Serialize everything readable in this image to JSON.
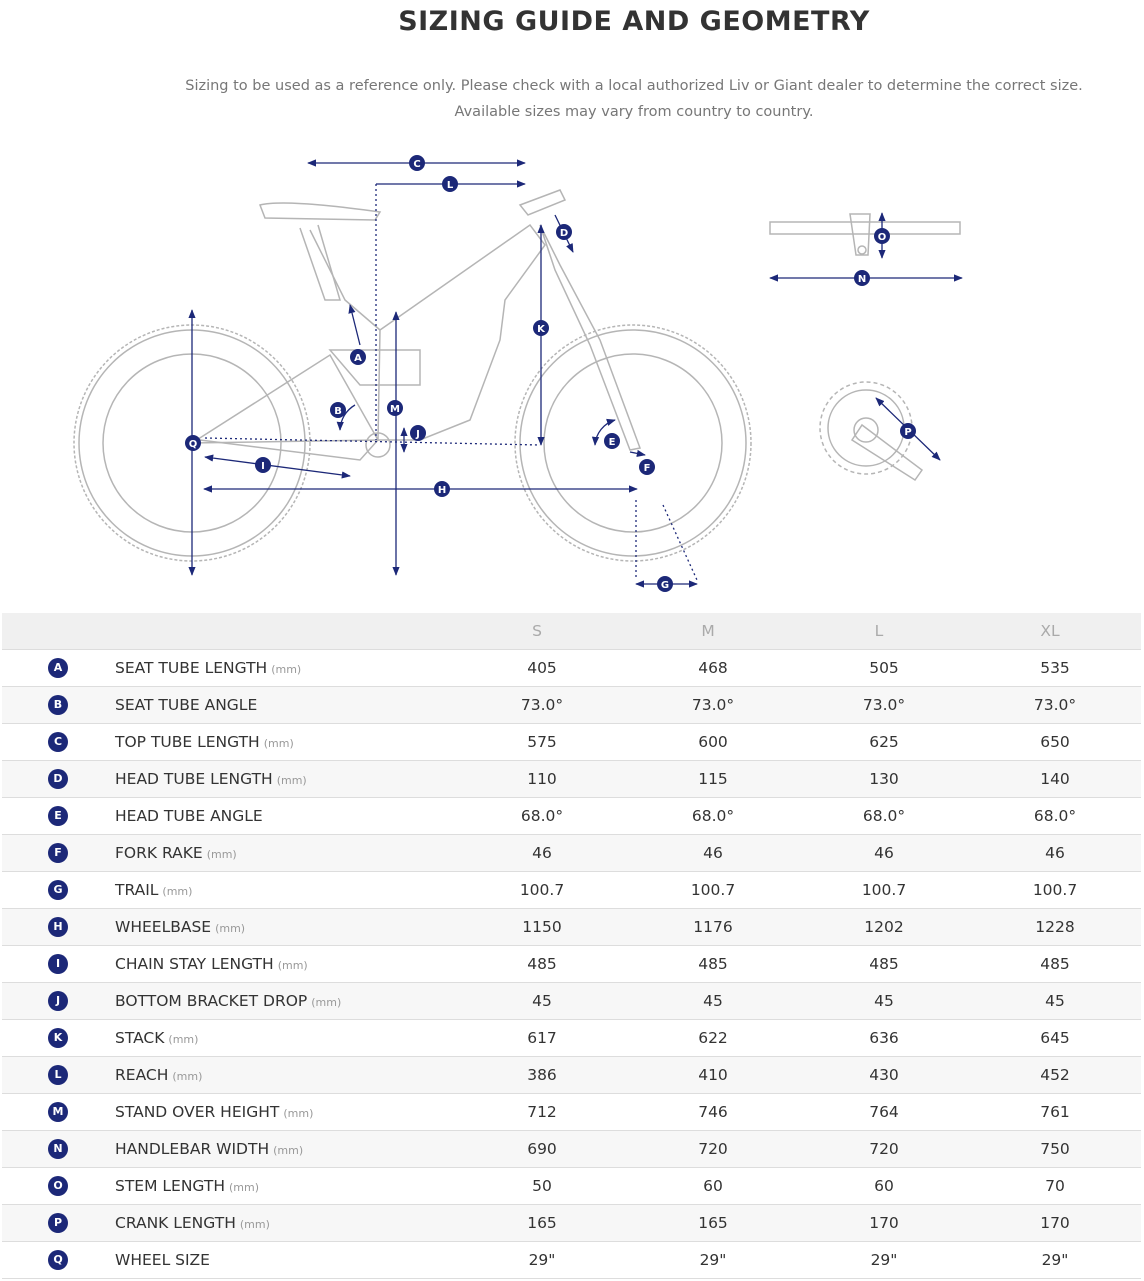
{
  "header": {
    "title": "SIZING GUIDE AND GEOMETRY",
    "notes": [
      "Sizing to be used as a reference only. Please check with a local authorized Liv or Giant dealer to determine the correct size.",
      "Available sizes may vary from country to country."
    ]
  },
  "diagram": {
    "labels": [
      "C",
      "L",
      "D",
      "K",
      "A",
      "M",
      "B",
      "J",
      "Q",
      "I",
      "H",
      "E",
      "F",
      "G",
      "O",
      "N",
      "P"
    ]
  },
  "table": {
    "sizes": [
      "S",
      "M",
      "L",
      "XL"
    ],
    "rows": [
      {
        "letter": "A",
        "name": "SEAT TUBE LENGTH",
        "unit": "(mm)",
        "values": [
          "405",
          "468",
          "505",
          "535"
        ]
      },
      {
        "letter": "B",
        "name": "SEAT TUBE ANGLE",
        "values": [
          "73.0°",
          "73.0°",
          "73.0°",
          "73.0°"
        ]
      },
      {
        "letter": "C",
        "name": "TOP TUBE LENGTH",
        "unit": "(mm)",
        "values": [
          "575",
          "600",
          "625",
          "650"
        ]
      },
      {
        "letter": "D",
        "name": "HEAD TUBE LENGTH",
        "unit": "(mm)",
        "values": [
          "110",
          "115",
          "130",
          "140"
        ]
      },
      {
        "letter": "E",
        "name": "HEAD TUBE ANGLE",
        "values": [
          "68.0°",
          "68.0°",
          "68.0°",
          "68.0°"
        ]
      },
      {
        "letter": "F",
        "name": "FORK RAKE",
        "unit": "(mm)",
        "values": [
          "46",
          "46",
          "46",
          "46"
        ]
      },
      {
        "letter": "G",
        "name": "TRAIL",
        "unit": "(mm)",
        "values": [
          "100.7",
          "100.7",
          "100.7",
          "100.7"
        ]
      },
      {
        "letter": "H",
        "name": "WHEELBASE",
        "unit": "(mm)",
        "values": [
          "1150",
          "1176",
          "1202",
          "1228"
        ]
      },
      {
        "letter": "I",
        "name": "CHAIN STAY LENGTH",
        "unit": "(mm)",
        "values": [
          "485",
          "485",
          "485",
          "485"
        ]
      },
      {
        "letter": "J",
        "name": "BOTTOM BRACKET DROP",
        "unit": "(mm)",
        "values": [
          "45",
          "45",
          "45",
          "45"
        ]
      },
      {
        "letter": "K",
        "name": "STACK",
        "unit": "(mm)",
        "values": [
          "617",
          "622",
          "636",
          "645"
        ]
      },
      {
        "letter": "L",
        "name": "REACH",
        "unit": "(mm)",
        "values": [
          "386",
          "410",
          "430",
          "452"
        ]
      },
      {
        "letter": "M",
        "name": "STAND OVER HEIGHT",
        "unit": "(mm)",
        "values": [
          "712",
          "746",
          "764",
          "761"
        ]
      },
      {
        "letter": "N",
        "name": "HANDLEBAR WIDTH",
        "unit": "(mm)",
        "values": [
          "690",
          "720",
          "720",
          "750"
        ]
      },
      {
        "letter": "O",
        "name": "STEM LENGTH",
        "unit": "(mm)",
        "values": [
          "50",
          "60",
          "60",
          "70"
        ]
      },
      {
        "letter": "P",
        "name": "CRANK LENGTH",
        "unit": "(mm)",
        "values": [
          "165",
          "165",
          "170",
          "170"
        ]
      },
      {
        "letter": "Q",
        "name": "WHEEL SIZE",
        "values": [
          "29\"",
          "29\"",
          "29\"",
          "29\""
        ]
      }
    ]
  }
}
